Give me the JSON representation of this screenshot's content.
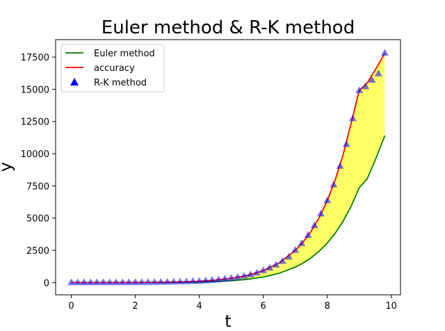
{
  "chart_data": {
    "type": "line",
    "title": "Euler method & R-K method",
    "xlabel": "t",
    "ylabel": "y",
    "xlim": [
      -0.49,
      10.29
    ],
    "ylim": [
      -950,
      18850
    ],
    "x_ticks": [
      0,
      2,
      4,
      6,
      8,
      10
    ],
    "y_ticks": [
      0,
      2500,
      5000,
      7500,
      10000,
      12500,
      15000,
      17500
    ],
    "grid": false,
    "legend_position": "upper-left",
    "series": [
      {
        "name": "Euler method",
        "type": "line",
        "color": "#008000",
        "x": [
          0,
          0.5,
          1,
          1.5,
          2,
          2.5,
          3,
          3.5,
          4,
          4.5,
          5,
          5.5,
          6,
          6.5,
          7,
          7.25,
          7.5,
          7.75,
          8,
          8.25,
          8.5,
          8.75,
          9,
          9.25,
          9.5,
          9.8
        ],
        "y": [
          -3,
          -2,
          -1,
          1,
          3,
          6,
          12,
          24,
          44,
          80,
          144,
          254,
          432,
          725,
          1200,
          1525,
          1930,
          2435,
          3060,
          3830,
          4780,
          5940,
          7350,
          8060,
          9500,
          11400
        ]
      },
      {
        "name": "accuracy",
        "type": "line",
        "color": "#ff0000",
        "x": [
          0,
          0.5,
          1,
          1.5,
          2,
          2.5,
          3,
          3.5,
          4,
          4.5,
          5,
          5.5,
          6,
          6.5,
          7,
          7.25,
          7.5,
          7.75,
          8,
          8.25,
          8.5,
          8.75,
          9,
          9.25,
          9.5,
          9.8
        ],
        "y": [
          0,
          1,
          2,
          4,
          9,
          17,
          33,
          61,
          109,
          191,
          329,
          557,
          929,
          1531,
          2500,
          3170,
          4000,
          5050,
          6360,
          7970,
          9960,
          12400,
          14900,
          15500,
          16500,
          17800
        ]
      },
      {
        "name": "R-K method",
        "type": "scatter",
        "color": "#0000ff",
        "marker": "triangle",
        "x": [
          0,
          0.2,
          0.4,
          0.6,
          0.8,
          1,
          1.2,
          1.4,
          1.6,
          1.8,
          2,
          2.2,
          2.4,
          2.6,
          2.8,
          3,
          3.2,
          3.4,
          3.6,
          3.8,
          4,
          4.2,
          4.4,
          4.6,
          4.8,
          5,
          5.2,
          5.4,
          5.6,
          5.8,
          6,
          6.2,
          6.4,
          6.6,
          6.8,
          7,
          7.2,
          7.4,
          7.6,
          7.8,
          8,
          8.2,
          8.4,
          8.6,
          8.8,
          9,
          9.2,
          9.4,
          9.6,
          9.8
        ],
        "y": [
          0,
          0,
          1,
          1,
          1,
          2,
          2,
          3,
          4,
          6,
          9,
          11,
          14,
          19,
          25,
          33,
          44,
          57,
          74,
          97,
          109,
          138,
          174,
          220,
          276,
          329,
          405,
          497,
          609,
          744,
          929,
          1125,
          1360,
          1645,
          1985,
          2500,
          3030,
          3660,
          4420,
          5330,
          6360,
          7580,
          9020,
          10720,
          12720,
          14900,
          15200,
          15700,
          16200,
          17800
        ]
      }
    ],
    "fill_between": {
      "color": "#ffff00",
      "alpha": 0.6,
      "between": [
        "Euler method",
        "accuracy"
      ]
    }
  }
}
